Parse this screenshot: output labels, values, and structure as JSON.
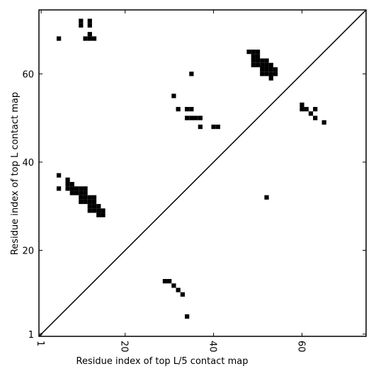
{
  "chart_data": {
    "type": "scatter",
    "x_label": "Residue index of top L/5 contact map",
    "y_label": "Residue index of top L contact map",
    "xlim": [
      0.5,
      74.5
    ],
    "ylim": [
      0.5,
      74.5
    ],
    "xticks": [
      1,
      20,
      40,
      60
    ],
    "yticks": [
      1,
      20,
      40,
      60
    ],
    "color": "#000000",
    "x": [
      5,
      10,
      10,
      12,
      12,
      12,
      11,
      12,
      13,
      5,
      5,
      7,
      7,
      8,
      7,
      8,
      9,
      10,
      11,
      8,
      9,
      10,
      11,
      10,
      11,
      12,
      13,
      10,
      11,
      12,
      13,
      12,
      13,
      14,
      12,
      13,
      14,
      15,
      14,
      15,
      31,
      32,
      34,
      35,
      34,
      35,
      36,
      37,
      37,
      40,
      41,
      35,
      48,
      49,
      50,
      49,
      50,
      49,
      50,
      51,
      52,
      49,
      50,
      51,
      52,
      53,
      51,
      52,
      53,
      54,
      51,
      52,
      53,
      54,
      53,
      60,
      60,
      61,
      63,
      62,
      63,
      65,
      52,
      29,
      30,
      31,
      32,
      33,
      34
    ],
    "values": [
      68,
      72,
      71,
      72,
      71,
      69,
      68,
      68,
      68,
      37,
      34,
      36,
      35,
      35,
      34,
      34,
      34,
      34,
      34,
      33,
      33,
      33,
      33,
      32,
      32,
      32,
      32,
      31,
      31,
      31,
      31,
      30,
      30,
      30,
      29,
      29,
      29,
      29,
      28,
      28,
      55,
      52,
      52,
      52,
      50,
      50,
      50,
      50,
      48,
      48,
      48,
      60,
      65,
      65,
      65,
      64,
      64,
      63,
      63,
      63,
      63,
      62,
      62,
      62,
      62,
      62,
      61,
      61,
      61,
      61,
      60,
      60,
      60,
      60,
      59,
      53,
      52,
      52,
      52,
      51,
      50,
      49,
      32,
      13,
      13,
      12,
      11,
      10,
      5
    ]
  }
}
